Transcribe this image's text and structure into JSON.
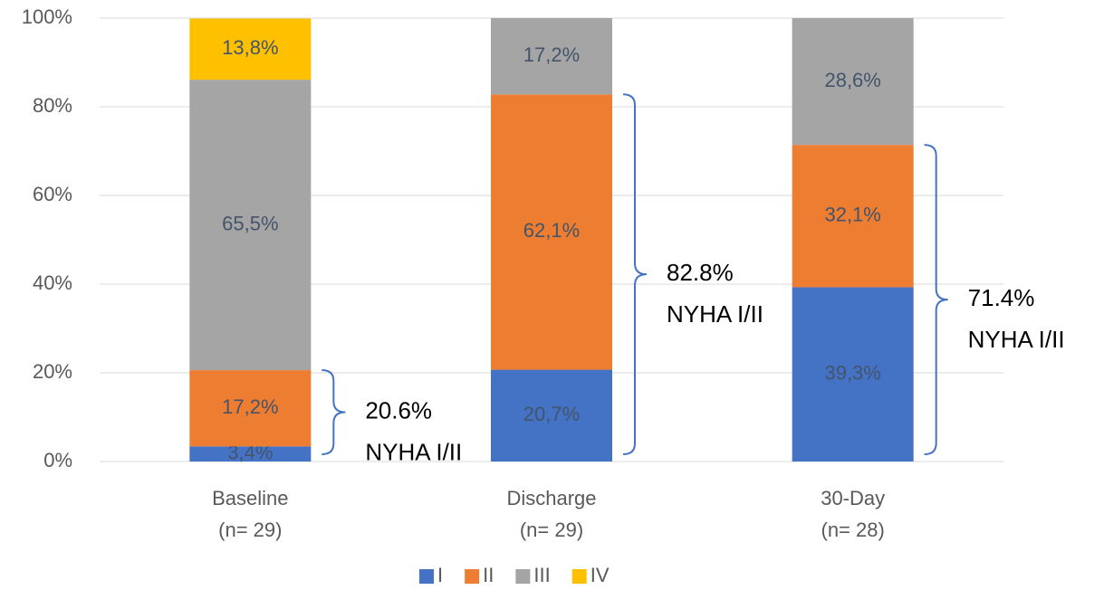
{
  "chart_data": {
    "type": "stacked_bar",
    "categories": [
      [
        "Baseline",
        "(n= 29)"
      ],
      [
        "Discharge",
        "(n= 29)"
      ],
      [
        "30-Day",
        "(n= 28)"
      ]
    ],
    "series": [
      {
        "name": "I",
        "color": "#4472c4",
        "values": [
          3.4,
          20.7,
          39.3
        ],
        "value_labels": [
          "3,4%",
          "20,7%",
          "39,3%"
        ]
      },
      {
        "name": "II",
        "color": "#ed7d31",
        "values": [
          17.2,
          62.1,
          32.1
        ],
        "value_labels": [
          "17,2%",
          "62,1%",
          "32,1%"
        ]
      },
      {
        "name": "III",
        "color": "#a5a5a5",
        "values": [
          65.5,
          17.2,
          28.6
        ],
        "value_labels": [
          "65,5%",
          "17,2%",
          "28,6%"
        ]
      },
      {
        "name": "IV",
        "color": "#ffc000",
        "values": [
          13.8,
          null,
          null
        ],
        "value_labels": [
          "13,8%",
          null,
          null
        ]
      }
    ],
    "annotations": [
      [
        "20.6%",
        "NYHA I/II"
      ],
      [
        "82.8%",
        "NYHA I/II"
      ],
      [
        "71.4%",
        "NYHA I/II"
      ]
    ],
    "ylim": [
      0,
      100
    ],
    "yticks": [
      {
        "value": 0,
        "label": "0%"
      },
      {
        "value": 20,
        "label": "20%"
      },
      {
        "value": 40,
        "label": "40%"
      },
      {
        "value": 60,
        "label": "60%"
      },
      {
        "value": 80,
        "label": "80%"
      },
      {
        "value": 100,
        "label": "100%"
      }
    ],
    "grid": true,
    "legend": "bottom"
  }
}
